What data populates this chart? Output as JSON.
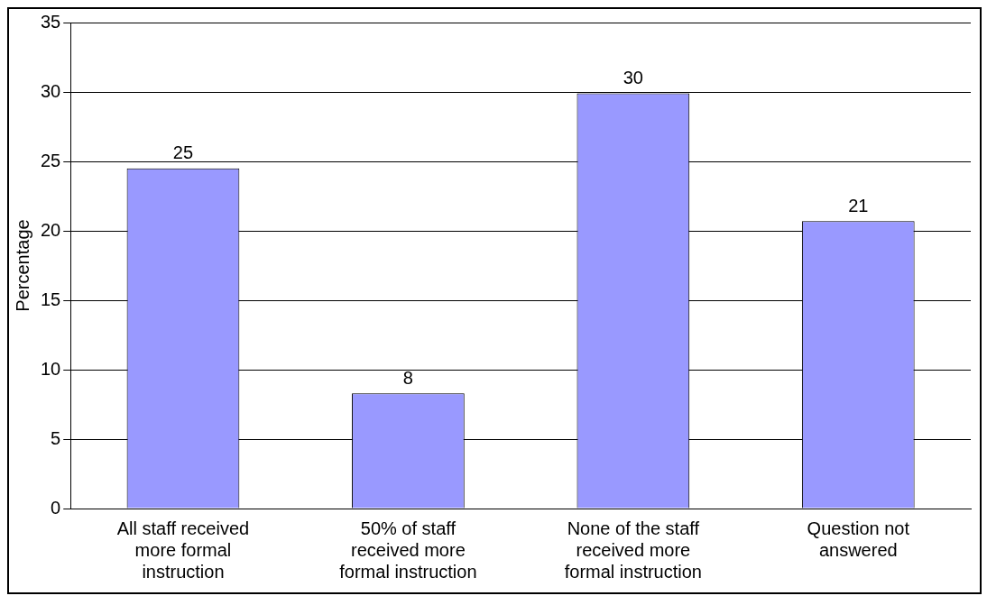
{
  "chart_data": {
    "type": "bar",
    "ylabel": "Percentage",
    "categories": [
      "All staff received more formal instruction",
      "50% of staff received more formal instruction",
      "None of the staff received more formal instruction",
      "Question not answered"
    ],
    "values": [
      24.5,
      8.3,
      29.9,
      20.7
    ],
    "value_labels": [
      "25",
      "8",
      "30",
      "21"
    ],
    "color": "#9999ff",
    "ylim": [
      0,
      35
    ],
    "yticks": [
      0,
      5,
      10,
      15,
      20,
      25,
      30,
      35
    ],
    "grid": "y",
    "legend": false
  }
}
